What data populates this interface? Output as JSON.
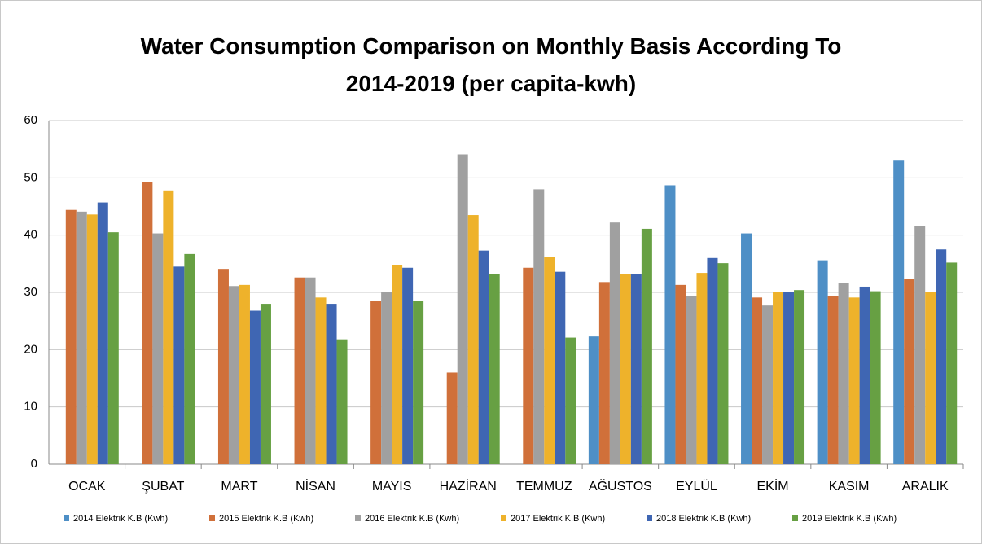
{
  "chart_data": {
    "type": "bar",
    "title": "Water Consumption Comparison on Monthly Basis According To 2014-2019 (per capita-kwh)",
    "categories": [
      "OCAK",
      "ŞUBAT",
      "MART",
      "NİSAN",
      "MAYIS",
      "HAZİRAN",
      "TEMMUZ",
      "AĞUSTOS",
      "EYLÜL",
      "EKİM",
      "KASIM",
      "ARALIK"
    ],
    "series": [
      {
        "name": "2014 Elektrik K.B (Kwh)",
        "color": "#4e8fc6",
        "values": [
          null,
          null,
          null,
          null,
          null,
          null,
          null,
          22.3,
          48.7,
          40.3,
          35.6,
          53
        ]
      },
      {
        "name": "2015 Elektrik K.B (Kwh)",
        "color": "#d0703a",
        "values": [
          44.4,
          49.3,
          34.1,
          32.6,
          28.5,
          16,
          34.3,
          31.8,
          31.3,
          29.1,
          29.4,
          32.4
        ]
      },
      {
        "name": "2016 Elektrik K.B (Kwh)",
        "color": "#a0a0a0",
        "values": [
          44.1,
          40.3,
          31.1,
          32.6,
          30.1,
          54.1,
          48,
          42.2,
          29.4,
          27.7,
          31.7,
          41.6
        ]
      },
      {
        "name": "2017 Elektrik K.B (Kwh)",
        "color": "#eeb22b",
        "values": [
          43.6,
          47.8,
          31.3,
          29.1,
          34.7,
          43.5,
          36.2,
          33.2,
          33.4,
          30.1,
          29.1,
          30.1
        ]
      },
      {
        "name": "2018 Elektrik K.B (Kwh)",
        "color": "#3f66b3",
        "values": [
          45.7,
          34.5,
          26.8,
          28,
          34.3,
          37.3,
          33.6,
          33.2,
          36,
          30.1,
          31,
          37.5
        ]
      },
      {
        "name": "2019 Elektrik K.B (Kwh)",
        "color": "#67a043",
        "values": [
          40.5,
          36.7,
          28,
          21.8,
          28.5,
          33.2,
          22.1,
          41.1,
          35.1,
          30.4,
          30.2,
          35.2
        ]
      }
    ],
    "ylim": [
      0,
      60
    ],
    "yticks": [
      0,
      10,
      20,
      30,
      40,
      50,
      60
    ],
    "grid": true,
    "legend": "bottom"
  }
}
